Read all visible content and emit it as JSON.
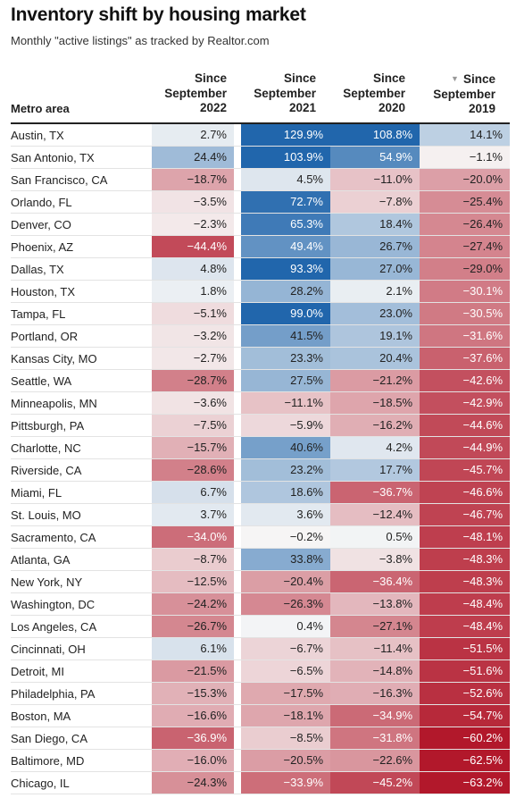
{
  "title": "Inventory shift by housing market",
  "subtitle": "Monthly \"active listings\" as tracked by Realtor.com",
  "header": {
    "metro_label": "Metro area",
    "columns": [
      {
        "line1": "Since",
        "line2": "September",
        "line3": "2022"
      },
      {
        "line1": "Since",
        "line2": "September",
        "line3": "2021"
      },
      {
        "line1": "Since",
        "line2": "September",
        "line3": "2020"
      },
      {
        "line1": "Since",
        "line2": "September",
        "line3": "2019",
        "sorted": true
      }
    ]
  },
  "sort_icon": "triangle-down-icon",
  "colors": {
    "strong_blue": "#2166ac",
    "neutral": "#f7f7f7",
    "strong_red": "#b2182b"
  },
  "chart_data": {
    "type": "table",
    "title": "Inventory shift by housing market",
    "subtitle": "Monthly \"active listings\" as tracked by Realtor.com",
    "columns": [
      "Since September 2022",
      "Since September 2021",
      "Since September 2020",
      "Since September 2019"
    ],
    "unit": "%",
    "rows": [
      {
        "metro": "Austin, TX",
        "values": [
          "2.7%",
          "129.9%",
          "108.8%",
          "14.1%"
        ]
      },
      {
        "metro": "San Antonio, TX",
        "values": [
          "24.4%",
          "103.9%",
          "54.9%",
          "−1.1%"
        ]
      },
      {
        "metro": "San Francisco, CA",
        "values": [
          "−18.7%",
          "4.5%",
          "−11.0%",
          "−20.0%"
        ]
      },
      {
        "metro": "Orlando, FL",
        "values": [
          "−3.5%",
          "72.7%",
          "−7.8%",
          "−25.4%"
        ]
      },
      {
        "metro": "Denver, CO",
        "values": [
          "−2.3%",
          "65.3%",
          "18.4%",
          "−26.4%"
        ]
      },
      {
        "metro": "Phoenix, AZ",
        "values": [
          "−44.4%",
          "49.4%",
          "26.7%",
          "−27.4%"
        ]
      },
      {
        "metro": "Dallas, TX",
        "values": [
          "4.8%",
          "93.3%",
          "27.0%",
          "−29.0%"
        ]
      },
      {
        "metro": "Houston, TX",
        "values": [
          "1.8%",
          "28.2%",
          "2.1%",
          "−30.1%"
        ]
      },
      {
        "metro": "Tampa, FL",
        "values": [
          "−5.1%",
          "99.0%",
          "23.0%",
          "−30.5%"
        ]
      },
      {
        "metro": "Portland, OR",
        "values": [
          "−3.2%",
          "41.5%",
          "19.1%",
          "−31.6%"
        ]
      },
      {
        "metro": "Kansas City, MO",
        "values": [
          "−2.7%",
          "23.3%",
          "20.4%",
          "−37.6%"
        ]
      },
      {
        "metro": "Seattle, WA",
        "values": [
          "−28.7%",
          "27.5%",
          "−21.2%",
          "−42.6%"
        ]
      },
      {
        "metro": "Minneapolis, MN",
        "values": [
          "−3.6%",
          "−11.1%",
          "−18.5%",
          "−42.9%"
        ]
      },
      {
        "metro": "Pittsburgh, PA",
        "values": [
          "−7.5%",
          "−5.9%",
          "−16.2%",
          "−44.6%"
        ]
      },
      {
        "metro": "Charlotte, NC",
        "values": [
          "−15.7%",
          "40.6%",
          "4.2%",
          "−44.9%"
        ]
      },
      {
        "metro": "Riverside, CA",
        "values": [
          "−28.6%",
          "23.2%",
          "17.7%",
          "−45.7%"
        ]
      },
      {
        "metro": "Miami, FL",
        "values": [
          "6.7%",
          "18.6%",
          "−36.7%",
          "−46.6%"
        ]
      },
      {
        "metro": "St. Louis, MO",
        "values": [
          "3.7%",
          "3.6%",
          "−12.4%",
          "−46.7%"
        ]
      },
      {
        "metro": "Sacramento, CA",
        "values": [
          "−34.0%",
          "−0.2%",
          "0.5%",
          "−48.1%"
        ]
      },
      {
        "metro": "Atlanta, GA",
        "values": [
          "−8.7%",
          "33.8%",
          "−3.8%",
          "−48.3%"
        ]
      },
      {
        "metro": "New York, NY",
        "values": [
          "−12.5%",
          "−20.4%",
          "−36.4%",
          "−48.3%"
        ]
      },
      {
        "metro": "Washington, DC",
        "values": [
          "−24.2%",
          "−26.3%",
          "−13.8%",
          "−48.4%"
        ]
      },
      {
        "metro": "Los Angeles, CA",
        "values": [
          "−26.7%",
          "0.4%",
          "−27.1%",
          "−48.4%"
        ]
      },
      {
        "metro": "Cincinnati, OH",
        "values": [
          "6.1%",
          "−6.7%",
          "−11.4%",
          "−51.5%"
        ]
      },
      {
        "metro": "Detroit, MI",
        "values": [
          "−21.5%",
          "−6.5%",
          "−14.8%",
          "−51.6%"
        ]
      },
      {
        "metro": "Philadelphia, PA",
        "values": [
          "−15.3%",
          "−17.5%",
          "−16.3%",
          "−52.6%"
        ]
      },
      {
        "metro": "Boston, MA",
        "values": [
          "−16.6%",
          "−18.1%",
          "−34.9%",
          "−54.7%"
        ]
      },
      {
        "metro": "San Diego, CA",
        "values": [
          "−36.9%",
          "−8.5%",
          "−31.8%",
          "−60.2%"
        ]
      },
      {
        "metro": "Baltimore, MD",
        "values": [
          "−16.0%",
          "−20.5%",
          "−22.6%",
          "−62.5%"
        ]
      },
      {
        "metro": "Chicago, IL",
        "values": [
          "−24.3%",
          "−33.9%",
          "−45.2%",
          "−63.2%"
        ]
      }
    ]
  }
}
